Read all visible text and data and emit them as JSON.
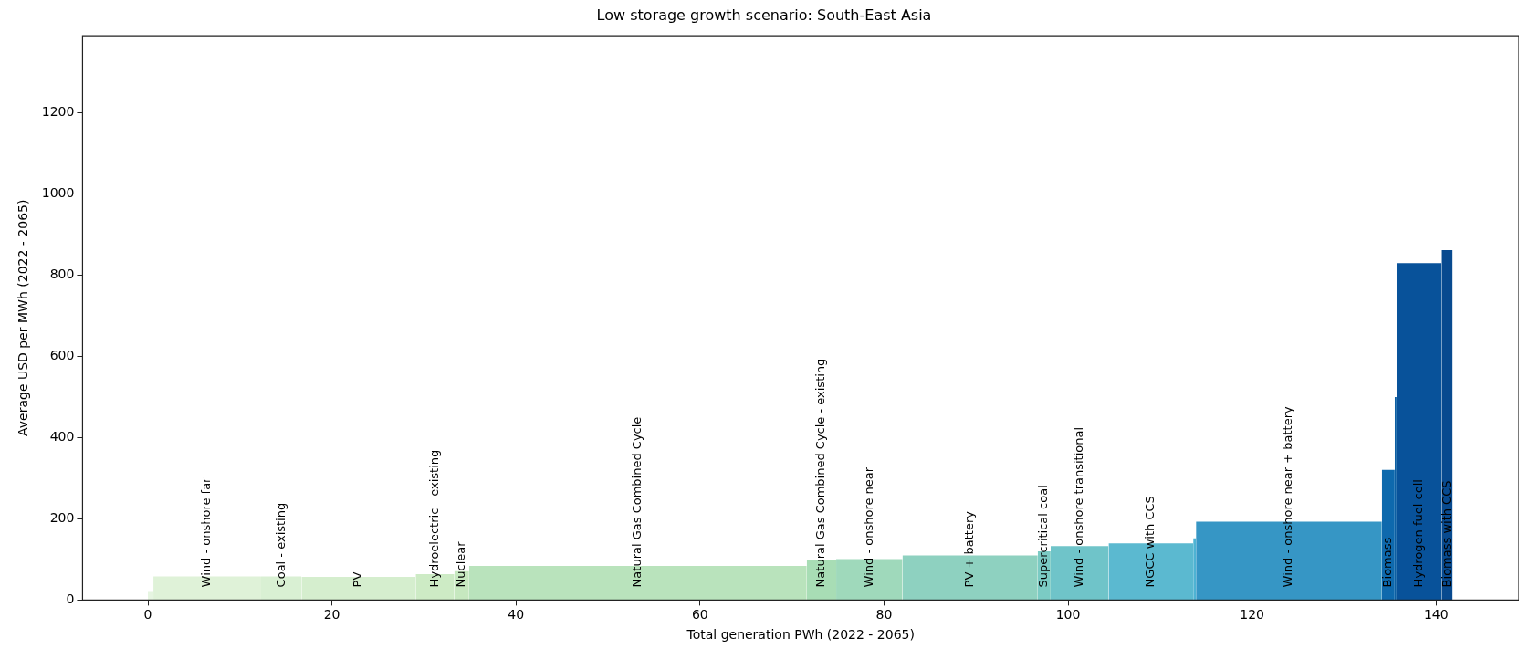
{
  "chart_data": {
    "type": "histogram",
    "title": "Low storage growth scenario: South-East Asia",
    "xlabel": "Total generation PWh (2022 - 2065)",
    "ylabel": "Average USD per MWh (2022 - 2065)",
    "bins": [
      0,
      0.6,
      12.3,
      16.7,
      29.1,
      33.3,
      34.9,
      71.6,
      74.8,
      82.0,
      96.7,
      98.1,
      104.4,
      113.6,
      113.9,
      134.1,
      135.5,
      135.7,
      140.6,
      141.8
    ],
    "values": [
      20,
      58,
      58,
      57,
      64,
      71,
      84,
      100,
      101,
      110,
      120,
      133,
      140,
      152,
      193,
      321,
      500,
      830,
      862
    ],
    "colors": [
      "#e6f5e1",
      "#dff2d8",
      "#d9f0d3",
      "#d5eece",
      "#cdebc5",
      "#c6e8bf",
      "#b9e3bc",
      "#a8ddb5",
      "#9fd9bb",
      "#8ed1c0",
      "#7bcbc4",
      "#6fc4c9",
      "#5bb9d0",
      "#4eb3d3",
      "#3696c5",
      "#0e69ad",
      "#0c5fa3",
      "#08529a",
      "#084a8f"
    ],
    "value_labels": [
      null,
      "Wind - onshore far",
      "Coal - existing",
      "PV",
      "Hydroelectric - existing",
      "Nuclear",
      "Natural Gas Combined Cycle",
      "Natural Gas Combined Cycle - existing",
      "Wind - onshore near",
      "PV + battery",
      "Supercritical coal",
      "Wind - onshore transitional",
      "NGCC with CCS",
      null,
      "Wind - onshore near + battery",
      "Biomass",
      null,
      "Hydrogen fuel cell",
      "Biomass with CCS"
    ],
    "xlim": [
      -7.1,
      149
    ],
    "ylim": [
      0,
      1390
    ],
    "xticks": [
      0,
      20,
      40,
      60,
      80,
      100,
      120,
      140
    ],
    "yticks": [
      0,
      200,
      400,
      600,
      800,
      1000,
      1200
    ]
  }
}
